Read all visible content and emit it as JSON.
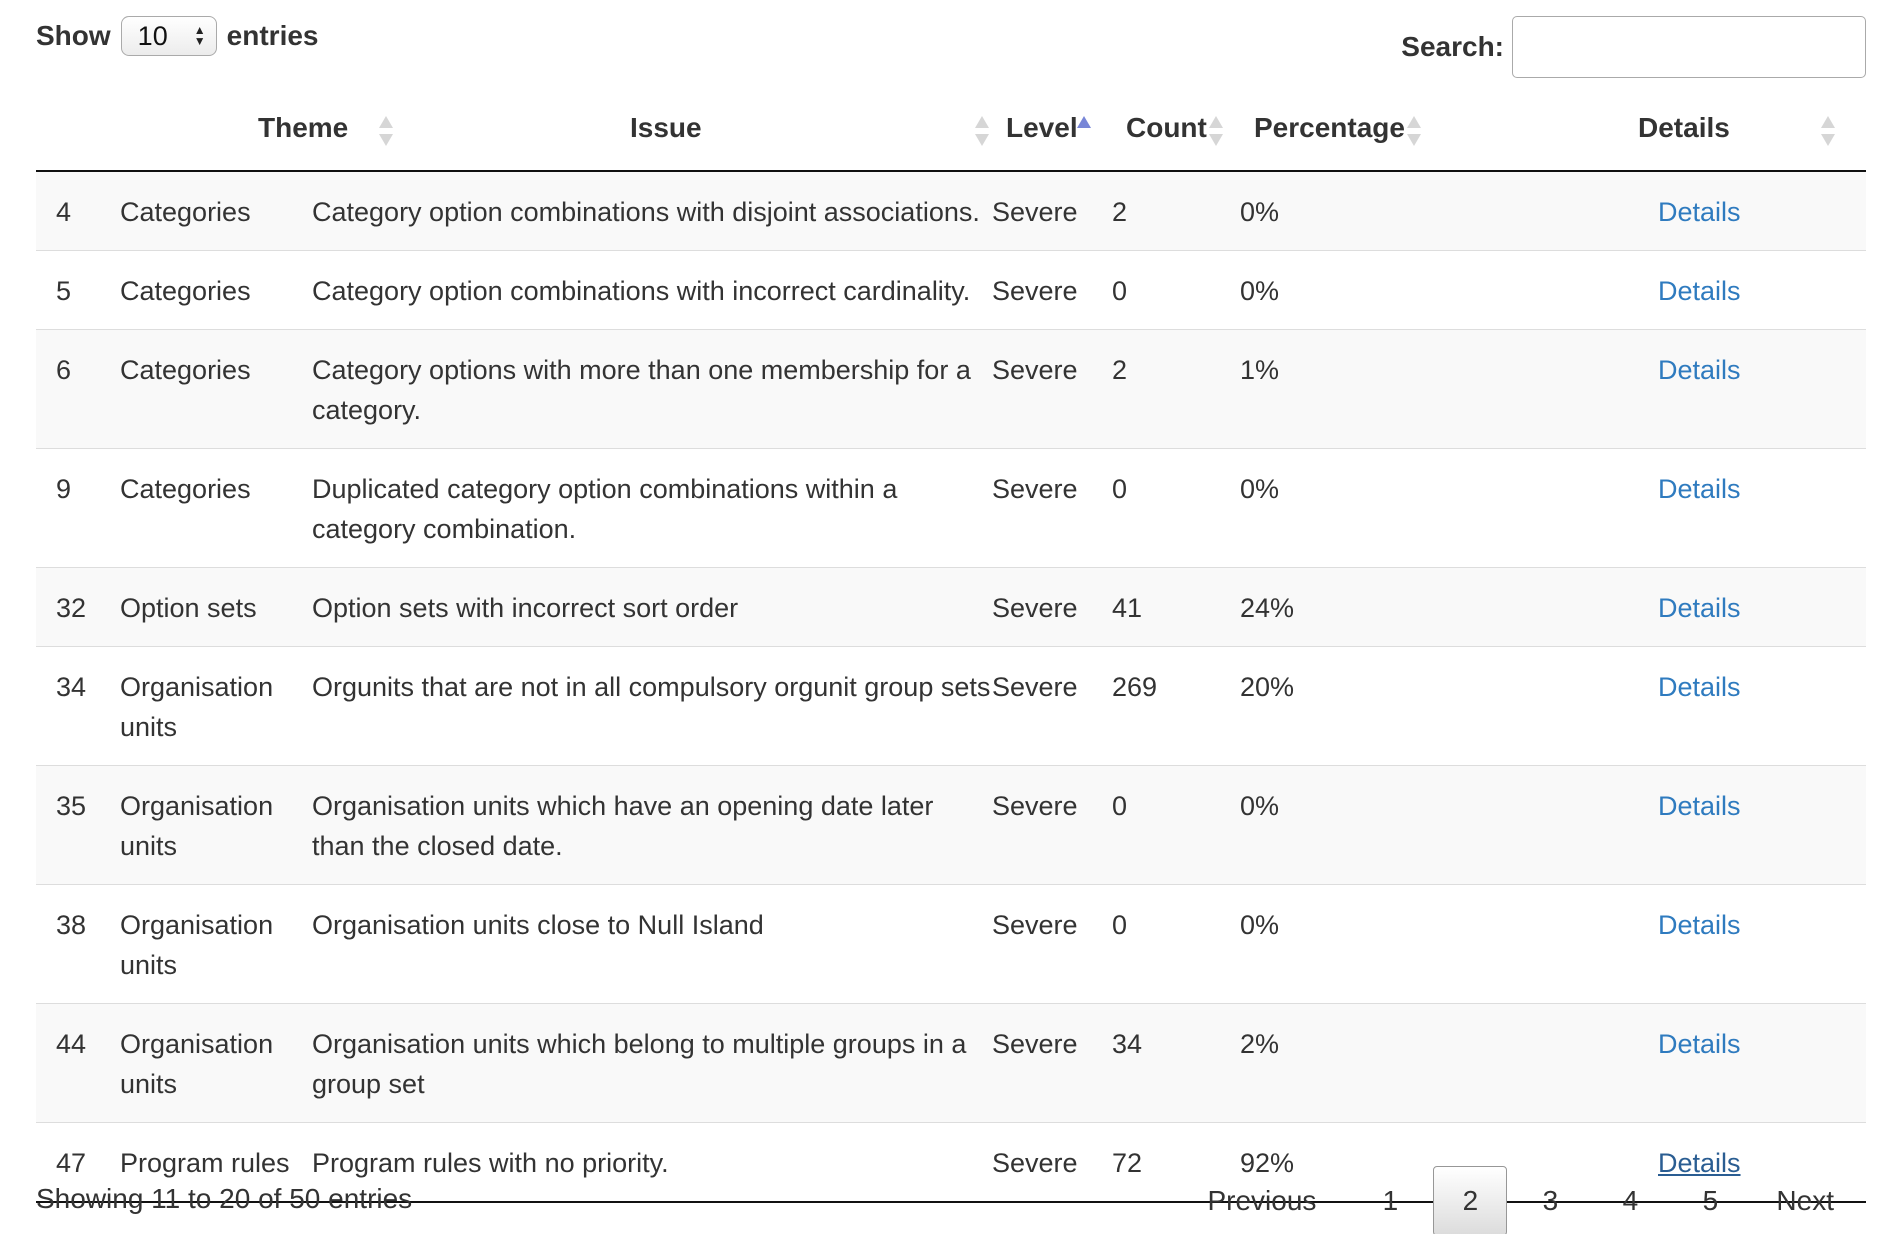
{
  "length_control": {
    "show_label": "Show",
    "selected_value": "10",
    "entries_label": "entries"
  },
  "search": {
    "label": "Search:",
    "value": "",
    "placeholder": ""
  },
  "table": {
    "columns": [
      {
        "label": "",
        "sort": "none"
      },
      {
        "label": "Theme",
        "sort": "both"
      },
      {
        "label": "Issue",
        "sort": "both"
      },
      {
        "label": "Level",
        "sort": "asc"
      },
      {
        "label": "Count",
        "sort": "both"
      },
      {
        "label": "Percentage",
        "sort": "both"
      },
      {
        "label": "Details",
        "sort": "both"
      }
    ],
    "rows": [
      {
        "id": "4",
        "theme": "Categories",
        "issue": "Category option combinations with disjoint associations.",
        "level": "Severe",
        "count": "2",
        "percentage": "0%",
        "details": "Details"
      },
      {
        "id": "5",
        "theme": "Categories",
        "issue": "Category option combinations with incorrect cardinality.",
        "level": "Severe",
        "count": "0",
        "percentage": "0%",
        "details": "Details"
      },
      {
        "id": "6",
        "theme": "Categories",
        "issue": "Category options with more than one membership for a category.",
        "level": "Severe",
        "count": "2",
        "percentage": "1%",
        "details": "Details"
      },
      {
        "id": "9",
        "theme": "Categories",
        "issue": "Duplicated category option combinations within a category combination.",
        "level": "Severe",
        "count": "0",
        "percentage": "0%",
        "details": "Details"
      },
      {
        "id": "32",
        "theme": "Option sets",
        "issue": "Option sets with incorrect sort order",
        "level": "Severe",
        "count": "41",
        "percentage": "24%",
        "details": "Details"
      },
      {
        "id": "34",
        "theme": "Organisation units",
        "issue": "Orgunits that are not in all compulsory orgunit group sets",
        "level": "Severe",
        "count": "269",
        "percentage": "20%",
        "details": "Details"
      },
      {
        "id": "35",
        "theme": "Organisation units",
        "issue": "Organisation units which have an opening date later than the closed date.",
        "level": "Severe",
        "count": "0",
        "percentage": "0%",
        "details": "Details"
      },
      {
        "id": "38",
        "theme": "Organisation units",
        "issue": "Organisation units close to Null Island",
        "level": "Severe",
        "count": "0",
        "percentage": "0%",
        "details": "Details"
      },
      {
        "id": "44",
        "theme": "Organisation units",
        "issue": "Organisation units which belong to multiple groups in a group set",
        "level": "Severe",
        "count": "34",
        "percentage": "2%",
        "details": "Details"
      },
      {
        "id": "47",
        "theme": "Program rules",
        "issue": "Program rules with no priority.",
        "level": "Severe",
        "count": "72",
        "percentage": "92%",
        "details": "Details"
      }
    ]
  },
  "footer": {
    "info": "Showing 11 to 20 of 50 entries",
    "pagination": {
      "previous": "Previous",
      "pages": [
        "1",
        "2",
        "3",
        "4",
        "5"
      ],
      "current": "2",
      "next": "Next"
    }
  },
  "colors": {
    "link": "#2f7bbf",
    "sort_active": "#7886d7",
    "sort_inactive": "#d6d6d6",
    "stripe": "#f9f9f9"
  }
}
